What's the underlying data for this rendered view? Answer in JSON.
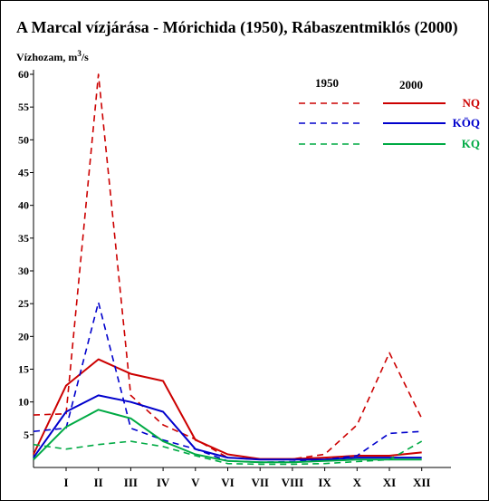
{
  "chart_data": {
    "type": "line",
    "title": "A Marcal vízjárása - Mórichida (1950), Rábaszentmiklós (2000)",
    "ylabel": "Vízhozam, m",
    "ylabel_sup": "3",
    "ylabel_tail": "/s",
    "xlabel": "",
    "categories": [
      "I",
      "II",
      "III",
      "IV",
      "V",
      "VI",
      "VII",
      "VIII",
      "IX",
      "X",
      "XI",
      "XII"
    ],
    "ylim": [
      0,
      60
    ],
    "yticks": [
      "5",
      "10",
      "15",
      "20",
      "25",
      "30",
      "35",
      "40",
      "45",
      "50",
      "55",
      "60"
    ],
    "grid": false,
    "legend": {
      "placement": "top-right",
      "year_dashed": "1950",
      "year_solid": "2000"
    },
    "series": [
      {
        "name": "NQ",
        "year": "1950",
        "style": "dashed",
        "color": "#cc0000",
        "start": 8.0,
        "values": [
          8.2,
          60.0,
          11.0,
          6.5,
          4.3,
          1.5,
          1.2,
          1.3,
          2.0,
          6.5,
          17.5,
          7.5
        ]
      },
      {
        "name": "NQ",
        "year": "2000",
        "style": "solid",
        "color": "#cc0000",
        "start": 2.0,
        "values": [
          12.5,
          16.5,
          14.3,
          13.2,
          4.2,
          2.0,
          1.3,
          1.3,
          1.5,
          1.8,
          1.8,
          2.3
        ]
      },
      {
        "name": "KÖQ",
        "year": "1950",
        "style": "dashed",
        "color": "#0000cc",
        "start": 5.5,
        "values": [
          6.0,
          25.2,
          6.0,
          4.2,
          2.8,
          1.0,
          0.8,
          0.9,
          1.2,
          1.8,
          5.2,
          5.5
        ]
      },
      {
        "name": "KÖQ",
        "year": "2000",
        "style": "solid",
        "color": "#0000cc",
        "start": 1.5,
        "values": [
          8.5,
          11.0,
          10.0,
          8.5,
          2.8,
          1.5,
          1.2,
          1.2,
          1.2,
          1.5,
          1.5,
          1.5
        ]
      },
      {
        "name": "KQ",
        "year": "1950",
        "style": "dashed",
        "color": "#00aa44",
        "start": 3.5,
        "values": [
          2.8,
          3.5,
          4.0,
          3.2,
          1.8,
          0.6,
          0.5,
          0.5,
          0.6,
          0.9,
          1.2,
          4.0
        ]
      },
      {
        "name": "KQ",
        "year": "2000",
        "style": "solid",
        "color": "#00aa44",
        "start": 1.2,
        "values": [
          6.2,
          8.8,
          7.5,
          4.0,
          2.0,
          1.0,
          0.8,
          0.8,
          1.0,
          1.2,
          1.2,
          1.2
        ]
      }
    ],
    "legend_entries": [
      {
        "name": "NQ",
        "color": "#cc0000"
      },
      {
        "name": "KÖQ",
        "color": "#0000cc"
      },
      {
        "name": "KQ",
        "color": "#00aa44"
      }
    ]
  }
}
